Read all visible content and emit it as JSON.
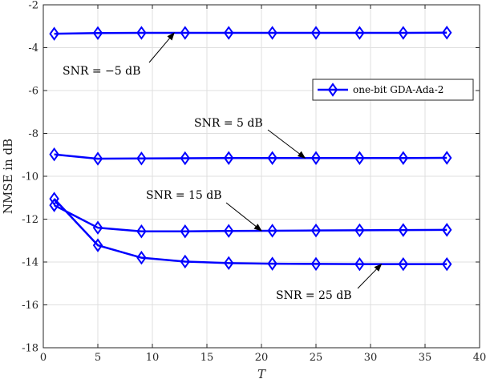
{
  "chart_data": {
    "type": "line",
    "xlabel": "T",
    "ylabel": "NMSE in dB",
    "xlim": [
      0,
      40
    ],
    "ylim": [
      -18,
      -2
    ],
    "xticks": [
      0,
      5,
      10,
      15,
      20,
      25,
      30,
      35,
      40
    ],
    "yticks": [
      -18,
      -16,
      -14,
      -12,
      -10,
      -8,
      -6,
      -4,
      -2
    ],
    "grid": true,
    "legend_position": "top-right",
    "legend_name": "one-bit GDA-Ada-2",
    "line_color": "#0000ff",
    "x": [
      1,
      5,
      9,
      13,
      17,
      21,
      25,
      29,
      33,
      37
    ],
    "series": [
      {
        "label": "SNR = −5 dB",
        "values": [
          -3.35,
          -3.32,
          -3.31,
          -3.31,
          -3.31,
          -3.31,
          -3.31,
          -3.31,
          -3.31,
          -3.3
        ]
      },
      {
        "label": "SNR = 5 dB",
        "values": [
          -8.98,
          -9.18,
          -9.17,
          -9.16,
          -9.15,
          -9.15,
          -9.15,
          -9.15,
          -9.15,
          -9.14
        ]
      },
      {
        "label": "SNR = 15 dB",
        "values": [
          -11.35,
          -12.4,
          -12.57,
          -12.57,
          -12.55,
          -12.54,
          -12.53,
          -12.52,
          -12.51,
          -12.5
        ]
      },
      {
        "label": "SNR = 25 dB",
        "values": [
          -11.05,
          -13.22,
          -13.8,
          -13.98,
          -14.05,
          -14.08,
          -14.09,
          -14.1,
          -14.1,
          -14.1
        ]
      }
    ],
    "annotations": [
      {
        "text": "SNR = −5 dB",
        "arrow_to": [
          12,
          -3.31
        ]
      },
      {
        "text": "SNR = 5 dB",
        "arrow_to": [
          24,
          -9.15
        ]
      },
      {
        "text": "SNR = 15 dB",
        "arrow_to": [
          20,
          -12.54
        ]
      },
      {
        "text": "SNR = 25 dB",
        "arrow_to": [
          31,
          -14.1
        ]
      }
    ]
  }
}
